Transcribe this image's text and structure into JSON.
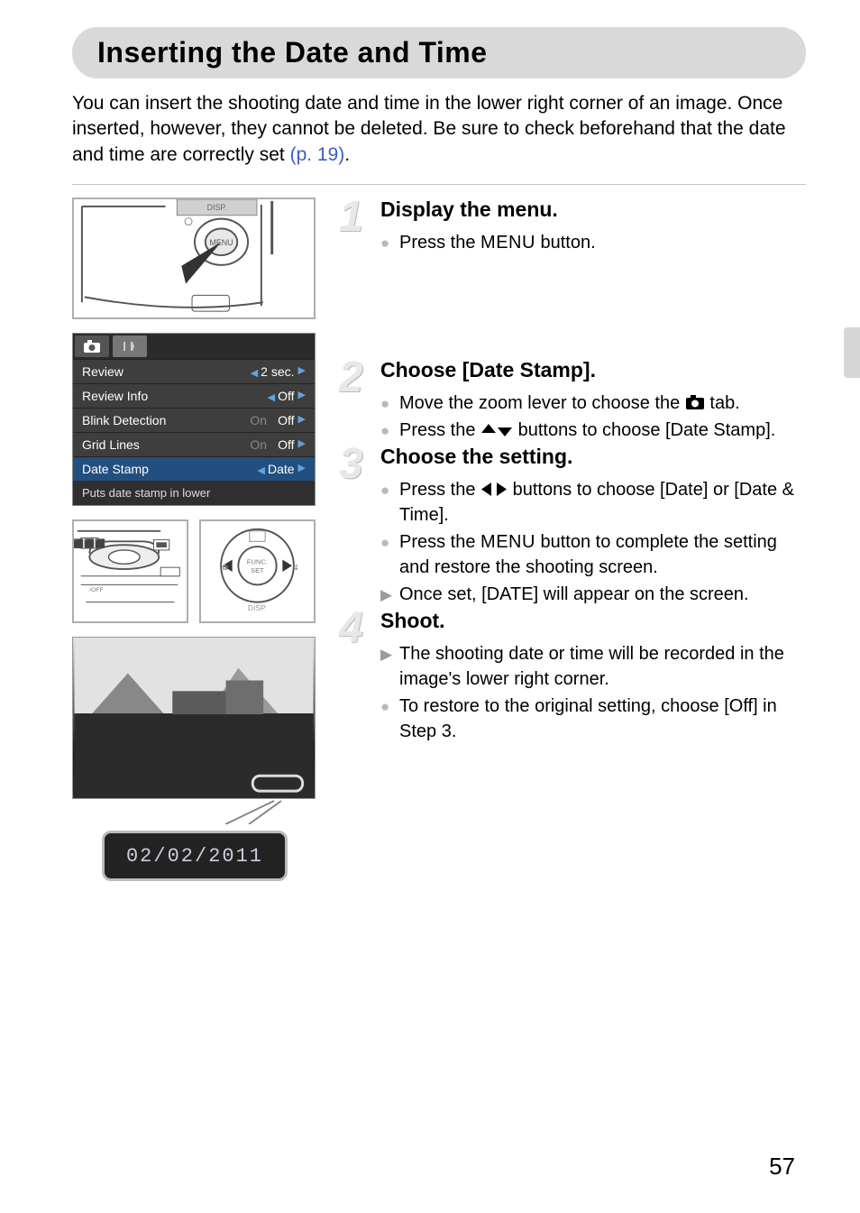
{
  "title": "Inserting the Date and Time",
  "intro_pre": "You can insert the shooting date and time in the lower right corner of an image. Once inserted, however, they cannot be deleted. Be sure to check beforehand that the date and time are correctly set ",
  "intro_link": "(p. 19)",
  "intro_post": ".",
  "menu": {
    "rows": [
      {
        "label": "Review",
        "val": "2 sec."
      },
      {
        "label": "Review Info",
        "val": "Off"
      },
      {
        "label": "Blink Detection",
        "val": "Off",
        "onoff": true
      },
      {
        "label": "Grid Lines",
        "val": "Off",
        "onoff": true
      },
      {
        "label": "Date Stamp",
        "val": "Date",
        "sel": true
      }
    ],
    "footer": "Puts date stamp in lower"
  },
  "date_zoom": "02/02/2011",
  "steps": [
    {
      "num": "1",
      "title": "Display the menu.",
      "items": [
        {
          "kind": "dot",
          "html": "Press the <span class=\"menu-word\">MENU</span> button."
        }
      ]
    },
    {
      "num": "2",
      "title": "Choose [Date Stamp].",
      "items": [
        {
          "kind": "dot",
          "html": "Move the zoom lever to choose the <svg class=\"icon-inline\" width=\"22\" height=\"18\" viewBox=\"0 0 22 18\"><rect x=\"1\" y=\"4\" width=\"20\" height=\"13\" rx=\"2\" fill=\"#000\"/><rect x=\"6\" y=\"1\" width=\"6\" height=\"4\" fill=\"#000\"/><circle cx=\"11\" cy=\"10.5\" r=\"4.2\" fill=\"#fff\" stroke=\"#000\" stroke-width=\"0.5\"/></svg> tab."
        },
        {
          "kind": "dot",
          "html": "Press the <svg class=\"icon-inline\" width=\"36\" height=\"16\" viewBox=\"0 0 36 16\"><polygon points=\"9,1 1,11 17,11\" fill=\"#000\"/><polygon points=\"27,15 19,5 35,5\" fill=\"#000\"/></svg> buttons to choose [Date Stamp]."
        }
      ]
    },
    {
      "num": "3",
      "title": "Choose the setting.",
      "items": [
        {
          "kind": "dot",
          "html": "Press the <svg class=\"icon-inline\" width=\"30\" height=\"17\" viewBox=\"0 0 30 17\"><polygon points=\"1,8.5 12,1 12,16\" fill=\"#000\"/><polygon points=\"29,8.5 18,1 18,16\" fill=\"#000\"/></svg> buttons to choose [Date] or [Date &amp; Time]."
        },
        {
          "kind": "dot",
          "html": "Press the <span class=\"menu-word\">MENU</span> button to complete the setting and restore the shooting screen."
        },
        {
          "kind": "tri",
          "html": "Once set, [DATE] will appear on the screen."
        }
      ]
    },
    {
      "num": "4",
      "title": "Shoot.",
      "items": [
        {
          "kind": "tri",
          "html": "The shooting date or time will be recorded in the image's lower right corner."
        },
        {
          "kind": "dot",
          "html": "To restore to the original setting, choose [Off] in Step 3."
        }
      ]
    }
  ],
  "page_number": "57"
}
